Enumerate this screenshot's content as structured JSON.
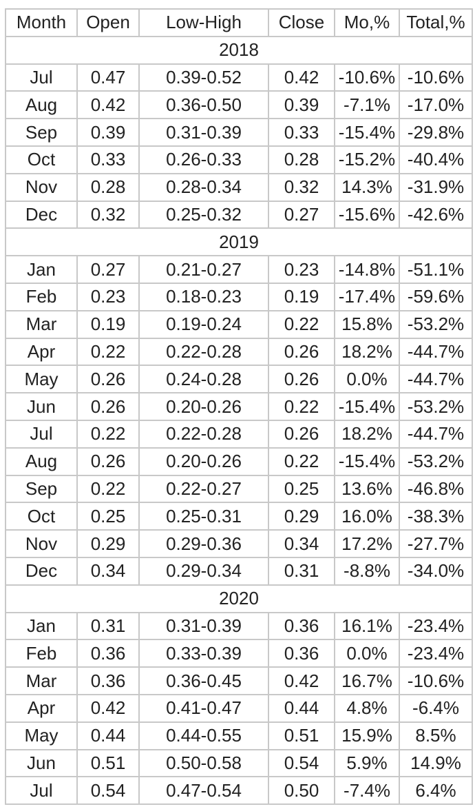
{
  "headers": [
    "Month",
    "Open",
    "Low-High",
    "Close",
    "Mo,%",
    "Total,%"
  ],
  "sections": [
    {
      "year": "2018",
      "rows": [
        [
          "Jul",
          "0.47",
          "0.39-0.52",
          "0.42",
          "-10.6%",
          "-10.6%"
        ],
        [
          "Aug",
          "0.42",
          "0.36-0.50",
          "0.39",
          "-7.1%",
          "-17.0%"
        ],
        [
          "Sep",
          "0.39",
          "0.31-0.39",
          "0.33",
          "-15.4%",
          "-29.8%"
        ],
        [
          "Oct",
          "0.33",
          "0.26-0.33",
          "0.28",
          "-15.2%",
          "-40.4%"
        ],
        [
          "Nov",
          "0.28",
          "0.28-0.34",
          "0.32",
          "14.3%",
          "-31.9%"
        ],
        [
          "Dec",
          "0.32",
          "0.25-0.32",
          "0.27",
          "-15.6%",
          "-42.6%"
        ]
      ]
    },
    {
      "year": "2019",
      "rows": [
        [
          "Jan",
          "0.27",
          "0.21-0.27",
          "0.23",
          "-14.8%",
          "-51.1%"
        ],
        [
          "Feb",
          "0.23",
          "0.18-0.23",
          "0.19",
          "-17.4%",
          "-59.6%"
        ],
        [
          "Mar",
          "0.19",
          "0.19-0.24",
          "0.22",
          "15.8%",
          "-53.2%"
        ],
        [
          "Apr",
          "0.22",
          "0.22-0.28",
          "0.26",
          "18.2%",
          "-44.7%"
        ],
        [
          "May",
          "0.26",
          "0.24-0.28",
          "0.26",
          "0.0%",
          "-44.7%"
        ],
        [
          "Jun",
          "0.26",
          "0.20-0.26",
          "0.22",
          "-15.4%",
          "-53.2%"
        ],
        [
          "Jul",
          "0.22",
          "0.22-0.28",
          "0.26",
          "18.2%",
          "-44.7%"
        ],
        [
          "Aug",
          "0.26",
          "0.20-0.26",
          "0.22",
          "-15.4%",
          "-53.2%"
        ],
        [
          "Sep",
          "0.22",
          "0.22-0.27",
          "0.25",
          "13.6%",
          "-46.8%"
        ],
        [
          "Oct",
          "0.25",
          "0.25-0.31",
          "0.29",
          "16.0%",
          "-38.3%"
        ],
        [
          "Nov",
          "0.29",
          "0.29-0.36",
          "0.34",
          "17.2%",
          "-27.7%"
        ],
        [
          "Dec",
          "0.34",
          "0.29-0.34",
          "0.31",
          "-8.8%",
          "-34.0%"
        ]
      ]
    },
    {
      "year": "2020",
      "rows": [
        [
          "Jan",
          "0.31",
          "0.31-0.39",
          "0.36",
          "16.1%",
          "-23.4%"
        ],
        [
          "Feb",
          "0.36",
          "0.33-0.39",
          "0.36",
          "0.0%",
          "-23.4%"
        ],
        [
          "Mar",
          "0.36",
          "0.36-0.45",
          "0.42",
          "16.7%",
          "-10.6%"
        ],
        [
          "Apr",
          "0.42",
          "0.41-0.47",
          "0.44",
          "4.8%",
          "-6.4%"
        ],
        [
          "May",
          "0.44",
          "0.44-0.55",
          "0.51",
          "15.9%",
          "8.5%"
        ],
        [
          "Jun",
          "0.51",
          "0.50-0.58",
          "0.54",
          "5.9%",
          "14.9%"
        ],
        [
          "Jul",
          "0.54",
          "0.47-0.54",
          "0.50",
          "-7.4%",
          "6.4%"
        ]
      ]
    }
  ]
}
